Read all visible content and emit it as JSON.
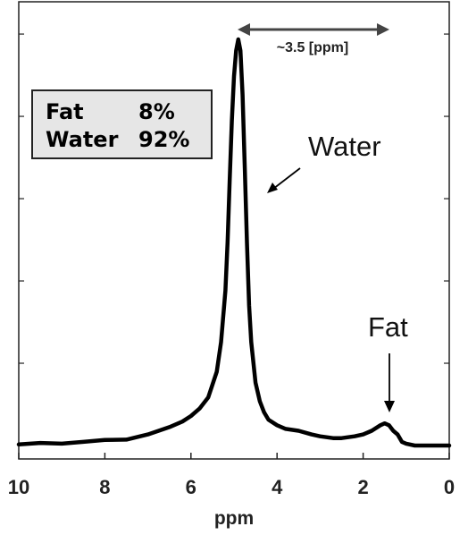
{
  "chart_data": {
    "type": "line",
    "title": "",
    "xlabel": "ppm",
    "ylabel": "",
    "xlim": [
      10,
      0
    ],
    "x_reversed": true,
    "ylim": [
      0,
      1.1
    ],
    "grid": false,
    "x_ticks": [
      "10",
      "8",
      "6",
      "4",
      "2",
      "0"
    ],
    "series": [
      {
        "x": [
          10.0,
          9.5,
          9.0,
          8.5,
          8.0,
          7.5,
          7.0,
          6.5,
          6.2,
          6.0,
          5.8,
          5.6,
          5.4,
          5.3,
          5.2,
          5.15,
          5.1,
          5.05,
          5.0,
          4.95,
          4.9,
          4.85,
          4.8,
          4.75,
          4.7,
          4.65,
          4.6,
          4.5,
          4.4,
          4.3,
          4.2,
          4.0,
          3.8,
          3.5,
          3.2,
          3.0,
          2.7,
          2.5,
          2.2,
          2.0,
          1.8,
          1.6,
          1.5,
          1.4,
          1.3,
          1.2,
          1.1,
          1.0,
          0.8,
          0.5,
          0.0
        ],
        "y": [
          0.003,
          0.007,
          0.005,
          0.01,
          0.015,
          0.016,
          0.03,
          0.05,
          0.065,
          0.08,
          0.1,
          0.13,
          0.2,
          0.28,
          0.42,
          0.55,
          0.72,
          0.88,
          1.0,
          1.07,
          1.1,
          1.07,
          0.95,
          0.75,
          0.55,
          0.38,
          0.28,
          0.17,
          0.12,
          0.09,
          0.07,
          0.055,
          0.045,
          0.04,
          0.03,
          0.025,
          0.02,
          0.02,
          0.025,
          0.03,
          0.04,
          0.055,
          0.06,
          0.055,
          0.04,
          0.03,
          0.01,
          0.005,
          0.0,
          0.0,
          0.0
        ]
      }
    ],
    "annotations": {
      "water_label": "Water",
      "fat_label": "Fat",
      "span_label": "~3.5 [ppm]"
    },
    "legend_box": {
      "rows": [
        {
          "name": "Fat",
          "value": "8%"
        },
        {
          "name": "Water",
          "value": "92%"
        }
      ]
    }
  }
}
